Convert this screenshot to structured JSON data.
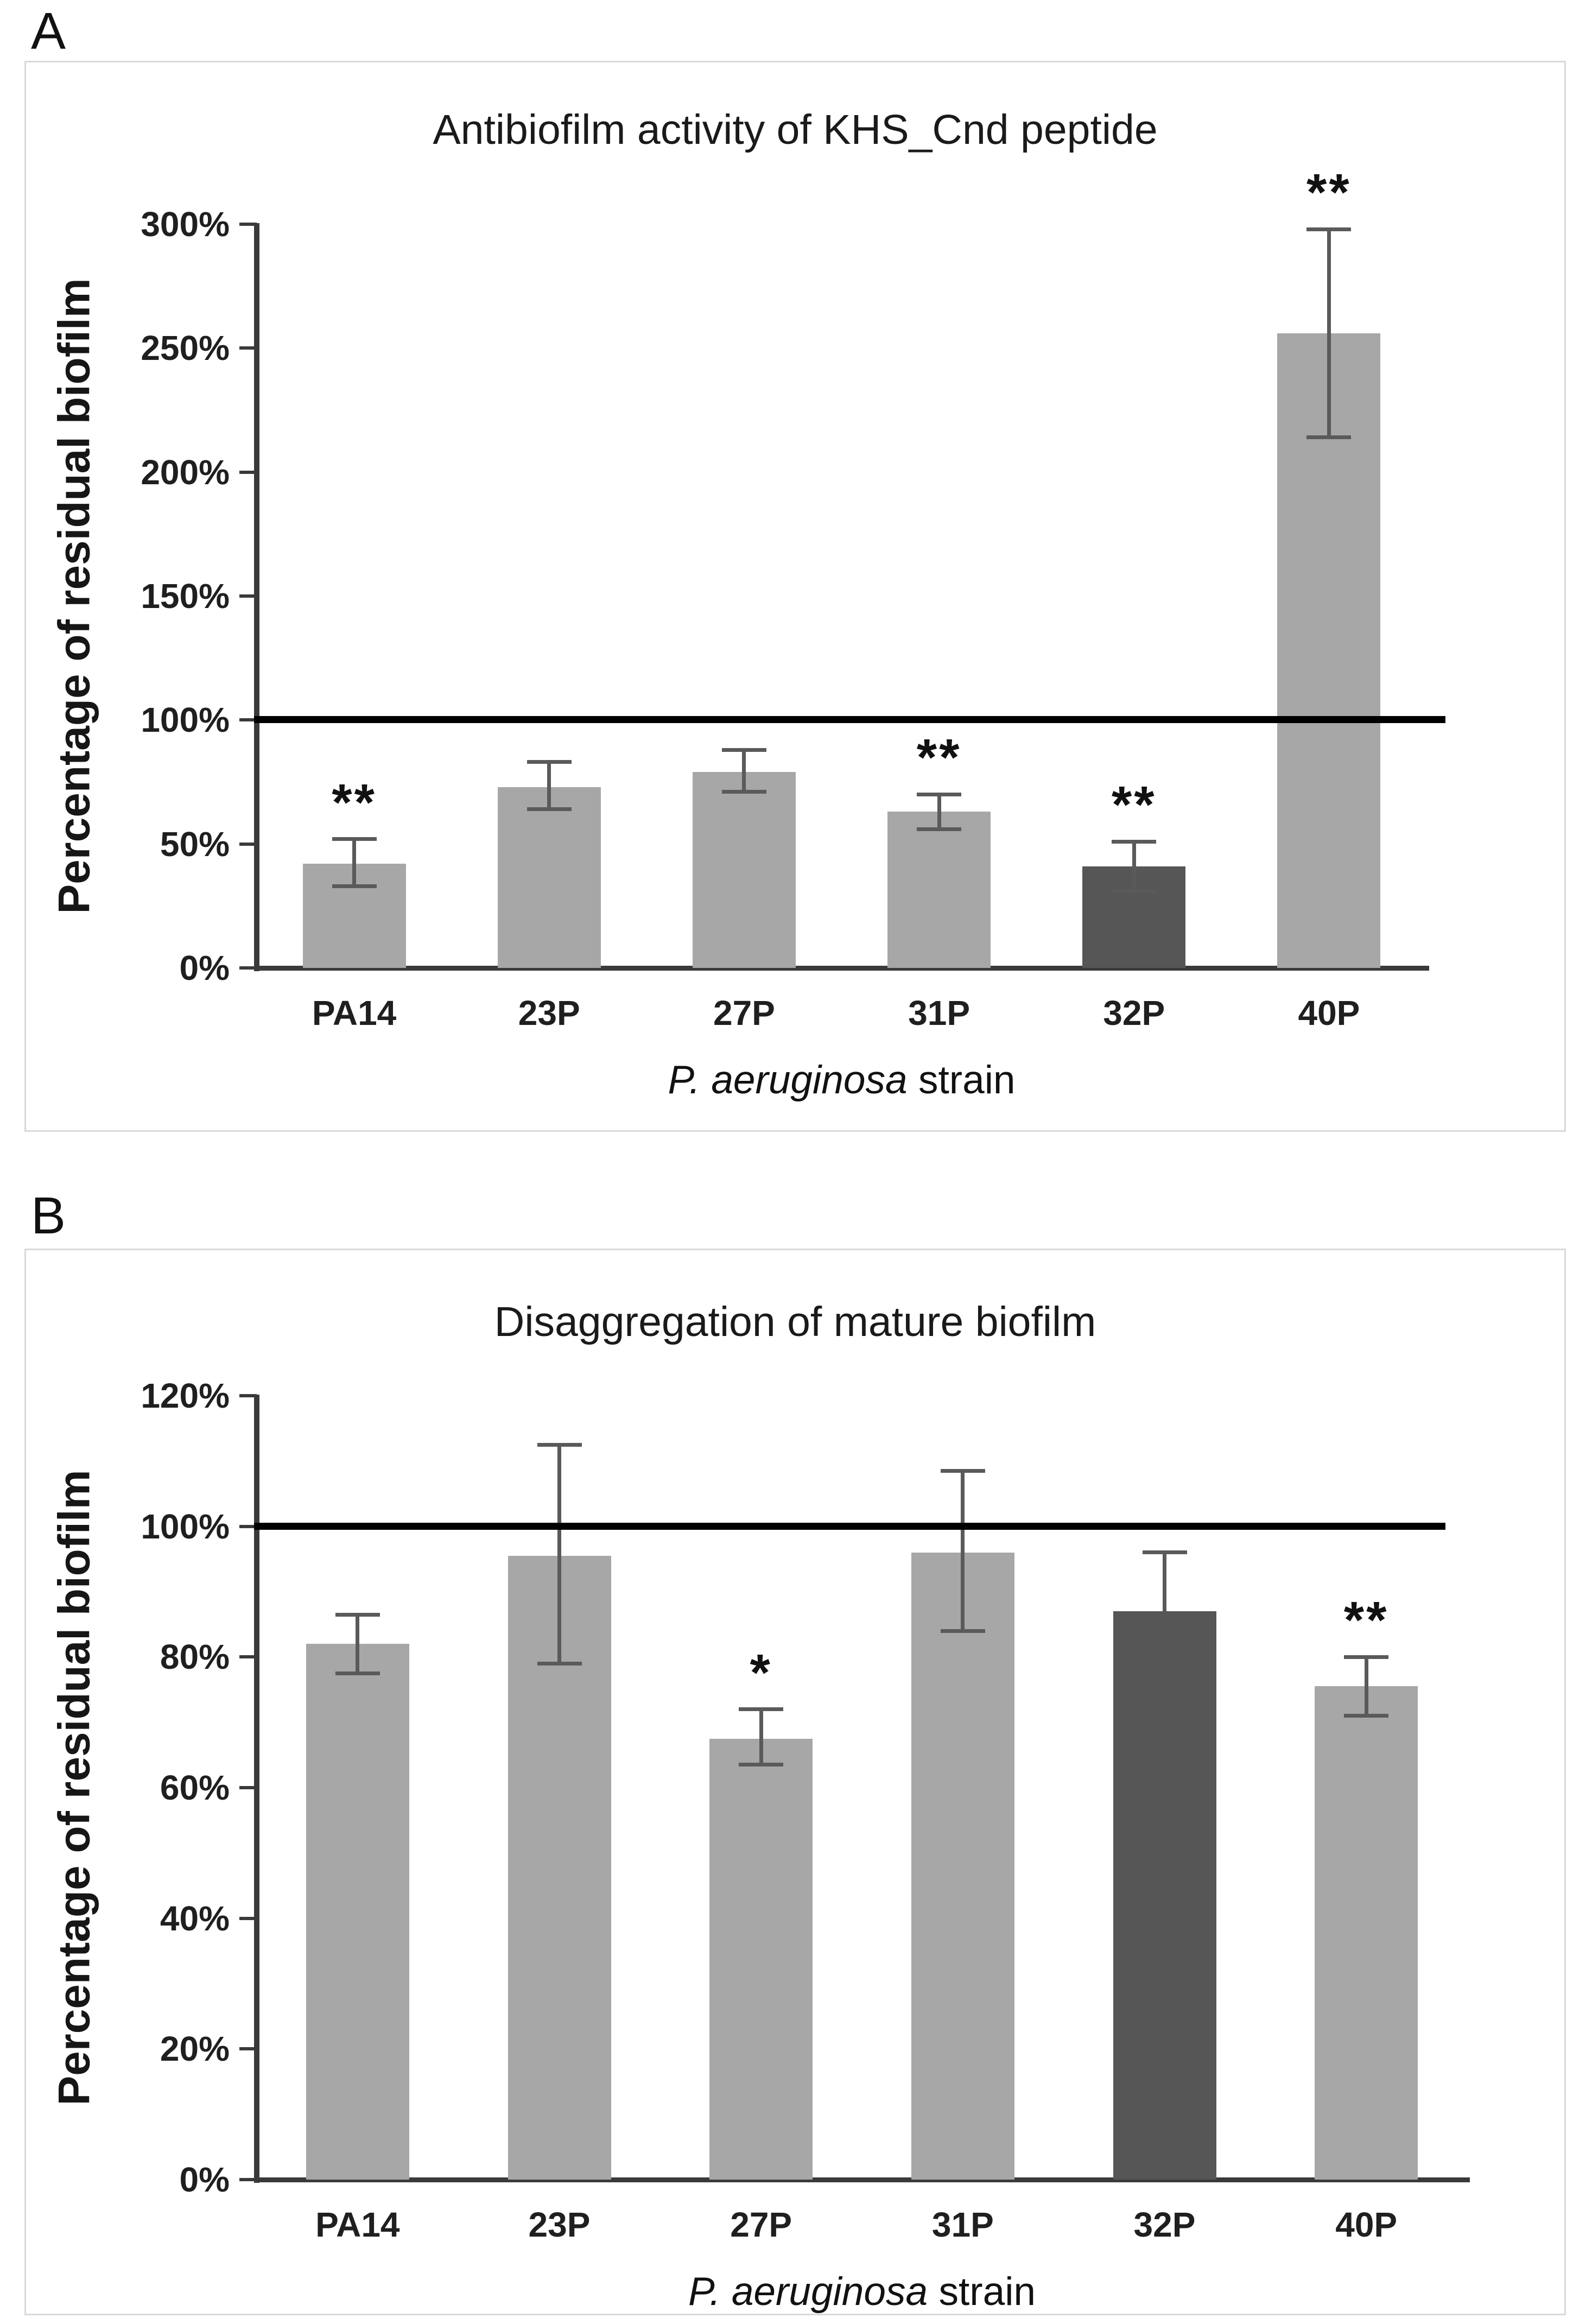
{
  "figure": {
    "panel_a_label": "A",
    "panel_b_label": "B"
  },
  "colors": {
    "bar_light": "#a7a7a7",
    "bar_dark": "#565656",
    "error_bar": "#5a5a5a",
    "axis": "#3a3a3a",
    "reference_line": "#000000",
    "panel_border": "#d9d9d9"
  },
  "chart_data": [
    {
      "id": "A",
      "type": "bar",
      "title": "Antibiofilm activity of KHS_Cnd peptide",
      "ylabel": "Percentage of residual biofilm",
      "xlabel_italic": "P. aeruginosa",
      "xlabel_regular": "strain",
      "categories": [
        "PA14",
        "23P",
        "27P",
        "31P",
        "32P",
        "40P"
      ],
      "values": [
        42,
        73,
        79,
        63,
        41,
        256
      ],
      "error_low": [
        33,
        64,
        71,
        56,
        31,
        214
      ],
      "error_high": [
        52,
        83,
        88,
        70,
        51,
        298
      ],
      "significance": [
        "**",
        "",
        "",
        "**",
        "**",
        "**"
      ],
      "bar_shades": [
        "light",
        "light",
        "light",
        "light",
        "dark",
        "light"
      ],
      "y_tick_labels": [
        "0%",
        "50%",
        "100%",
        "150%",
        "200%",
        "250%",
        "300%"
      ],
      "y_tick_values": [
        0,
        50,
        100,
        150,
        200,
        250,
        300
      ],
      "ylim": [
        0,
        300
      ],
      "reference_line_value": 100,
      "grid": false,
      "legend": null
    },
    {
      "id": "B",
      "type": "bar",
      "title": "Disaggregation of mature biofilm",
      "ylabel": "Percentage of residual biofilm",
      "xlabel_italic": "P. aeruginosa",
      "xlabel_regular": "strain",
      "categories": [
        "PA14",
        "23P",
        "27P",
        "31P",
        "32P",
        "40P"
      ],
      "values": [
        82,
        95.5,
        67.5,
        96,
        87,
        75.5
      ],
      "error_low": [
        77.5,
        79,
        63.5,
        84,
        null,
        71
      ],
      "error_high": [
        86.5,
        112.5,
        72,
        108.5,
        96,
        80
      ],
      "significance": [
        "",
        "",
        "*",
        "",
        "",
        "**"
      ],
      "bar_shades": [
        "light",
        "light",
        "light",
        "light",
        "dark",
        "light"
      ],
      "y_tick_labels": [
        "0%",
        "20%",
        "40%",
        "60%",
        "80%",
        "100%",
        "120%"
      ],
      "y_tick_values": [
        0,
        20,
        40,
        60,
        80,
        100,
        120
      ],
      "ylim": [
        0,
        120
      ],
      "reference_line_value": 100,
      "grid": false,
      "legend": null
    }
  ]
}
